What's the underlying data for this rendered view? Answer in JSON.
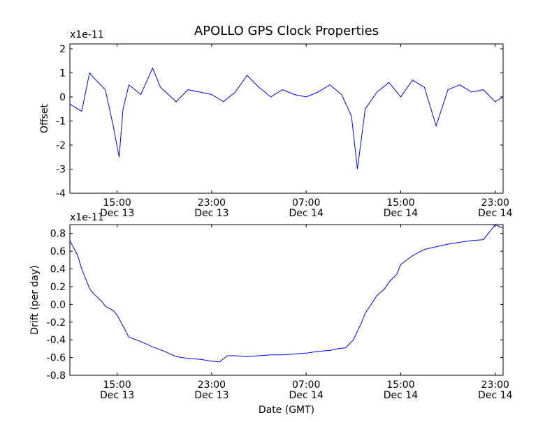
{
  "title": "APOLLO GPS Clock Properties",
  "colors": {
    "series": "#0000ff",
    "axes": "#000000",
    "background": "#ffffff"
  },
  "chart_data": [
    {
      "type": "line",
      "ylabel": "Offset",
      "xlabel": "",
      "scale_label": "x1e-11",
      "x_range": [
        "Dec 13 11:00",
        "Dec 14 23:40"
      ],
      "ylim": [
        -4,
        2.2
      ],
      "y_ticks": [
        "-4",
        "-3",
        "-2",
        "-1",
        "0",
        "1",
        "2"
      ],
      "x_ticks": [
        {
          "time": "15:00",
          "date": "Dec 13"
        },
        {
          "time": "23:00",
          "date": "Dec 13"
        },
        {
          "time": "07:00",
          "date": "Dec 14"
        },
        {
          "time": "15:00",
          "date": "Dec 14"
        },
        {
          "time": "23:00",
          "date": "Dec 14"
        }
      ],
      "series": [
        {
          "x": [
            "Dec 13 11:00",
            "Dec 13 12:00",
            "Dec 13 12:40",
            "Dec 13 13:00",
            "Dec 13 14:00",
            "Dec 13 14:40",
            "Dec 13 15:10",
            "Dec 13 15:30",
            "Dec 13 16:00",
            "Dec 13 17:00",
            "Dec 13 18:00",
            "Dec 13 18:40",
            "Dec 13 20:00",
            "Dec 13 21:00",
            "Dec 13 22:00",
            "Dec 13 23:00",
            "Dec 14 00:00",
            "Dec 14 01:00",
            "Dec 14 02:00",
            "Dec 14 03:00",
            "Dec 14 04:00",
            "Dec 14 05:00",
            "Dec 14 06:00",
            "Dec 14 07:00",
            "Dec 14 08:00",
            "Dec 14 09:00",
            "Dec 14 10:00",
            "Dec 14 10:50",
            "Dec 14 11:20",
            "Dec 14 12:00",
            "Dec 14 13:00",
            "Dec 14 14:00",
            "Dec 14 15:00",
            "Dec 14 16:00",
            "Dec 14 17:00",
            "Dec 14 18:00",
            "Dec 14 19:00",
            "Dec 14 20:00",
            "Dec 14 21:00",
            "Dec 14 22:00",
            "Dec 14 23:00",
            "Dec 14 23:40"
          ],
          "y": [
            -0.3,
            -0.6,
            1.0,
            0.8,
            0.3,
            -1.2,
            -2.5,
            -0.5,
            0.5,
            0.1,
            1.2,
            0.4,
            -0.2,
            0.3,
            0.2,
            0.1,
            -0.2,
            0.2,
            0.9,
            0.4,
            0.0,
            0.3,
            0.1,
            0.0,
            0.2,
            0.5,
            0.1,
            -0.8,
            -3.0,
            -0.5,
            0.2,
            0.6,
            0.0,
            0.7,
            0.4,
            -1.2,
            0.3,
            0.5,
            0.2,
            0.3,
            -0.2,
            0.0
          ]
        }
      ]
    },
    {
      "type": "line",
      "ylabel": "Drift (per day)",
      "xlabel": "Date (GMT)",
      "scale_label": "x1e-11",
      "x_range": [
        "Dec 13 11:00",
        "Dec 14 23:40"
      ],
      "ylim": [
        -0.8,
        0.9
      ],
      "y_ticks": [
        "-0.8",
        "-0.6",
        "-0.4",
        "-0.2",
        "0.0",
        "0.2",
        "0.4",
        "0.6",
        "0.8"
      ],
      "x_ticks": [
        {
          "time": "15:00",
          "date": "Dec 13"
        },
        {
          "time": "23:00",
          "date": "Dec 13"
        },
        {
          "time": "07:00",
          "date": "Dec 14"
        },
        {
          "time": "15:00",
          "date": "Dec 14"
        },
        {
          "time": "23:00",
          "date": "Dec 14"
        }
      ],
      "series": [
        {
          "x": [
            "Dec 13 11:00",
            "Dec 13 11:40",
            "Dec 13 12:00",
            "Dec 13 12:40",
            "Dec 13 13:00",
            "Dec 13 13:40",
            "Dec 13 14:00",
            "Dec 13 14:40",
            "Dec 13 15:00",
            "Dec 13 16:00",
            "Dec 13 17:00",
            "Dec 13 18:00",
            "Dec 13 19:00",
            "Dec 13 20:00",
            "Dec 13 21:00",
            "Dec 13 22:00",
            "Dec 13 23:00",
            "Dec 13 23:40",
            "Dec 14 00:20",
            "Dec 14 01:00",
            "Dec 14 02:00",
            "Dec 14 03:00",
            "Dec 14 04:00",
            "Dec 14 05:00",
            "Dec 14 06:00",
            "Dec 14 07:00",
            "Dec 14 08:00",
            "Dec 14 09:00",
            "Dec 14 09:40",
            "Dec 14 10:20",
            "Dec 14 11:00",
            "Dec 14 11:40",
            "Dec 14 12:00",
            "Dec 14 13:00",
            "Dec 14 13:40",
            "Dec 14 14:00",
            "Dec 14 14:40",
            "Dec 14 15:00",
            "Dec 14 16:00",
            "Dec 14 17:00",
            "Dec 14 18:00",
            "Dec 14 19:00",
            "Dec 14 20:00",
            "Dec 14 21:00",
            "Dec 14 22:00",
            "Dec 14 23:00",
            "Dec 14 23:40"
          ],
          "y": [
            0.72,
            0.55,
            0.4,
            0.18,
            0.12,
            0.04,
            -0.02,
            -0.07,
            -0.12,
            -0.37,
            -0.42,
            -0.48,
            -0.53,
            -0.59,
            -0.61,
            -0.62,
            -0.64,
            -0.65,
            -0.58,
            -0.58,
            -0.59,
            -0.58,
            -0.57,
            -0.57,
            -0.56,
            -0.55,
            -0.53,
            -0.52,
            -0.5,
            -0.49,
            -0.4,
            -0.21,
            -0.1,
            0.1,
            0.18,
            0.25,
            0.34,
            0.45,
            0.55,
            0.62,
            0.65,
            0.68,
            0.7,
            0.72,
            0.73,
            0.9,
            0.86
          ]
        }
      ]
    }
  ]
}
